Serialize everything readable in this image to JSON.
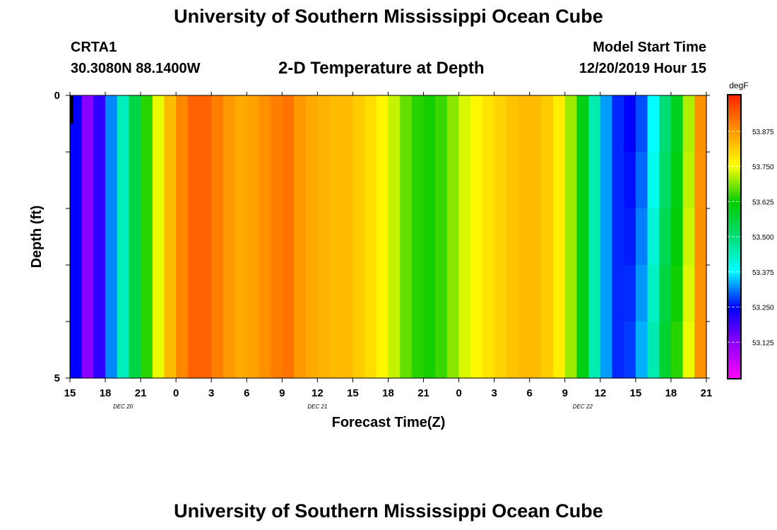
{
  "header": {
    "title": "University of Southern Mississippi Ocean Cube",
    "station": "CRTA1",
    "coordinates": "30.3080N 88.1400W",
    "chart_title": "2-D Temperature at Depth",
    "model_start_label": "Model Start Time",
    "model_start_value": "12/20/2019 Hour 15"
  },
  "footer": {
    "title": "University of Southern Mississippi Ocean Cube"
  },
  "chart_data": {
    "type": "heatmap",
    "title": "2-D Temperature at Depth",
    "xlabel": "Forecast Time(Z)",
    "ylabel": "Depth (ft)",
    "colorbar_label": "degF",
    "x_tick_labels": [
      "15",
      "18",
      "21",
      "0",
      "3",
      "6",
      "9",
      "12",
      "15",
      "18",
      "21",
      "0",
      "3",
      "6",
      "9",
      "12",
      "15",
      "18",
      "21"
    ],
    "y_tick_labels": [
      "0",
      "5"
    ],
    "y_range": [
      0,
      5
    ],
    "date_labels": [
      {
        "text": "DEC  20",
        "tick_index": 1.5
      },
      {
        "text": "DEC  21",
        "tick_index": 7
      },
      {
        "text": "DEC  22",
        "tick_index": 14.5
      }
    ],
    "colorbar_ticks": [
      "53.875",
      "53.750",
      "53.625",
      "53.500",
      "53.375",
      "53.250",
      "53.125"
    ],
    "colorbar_range": [
      53.0,
      54.0
    ],
    "hours": 54,
    "depth_levels": 5,
    "temperature_profile_degF": [
      53.25,
      53.13,
      53.21,
      53.32,
      53.44,
      53.55,
      53.64,
      53.74,
      53.83,
      53.89,
      53.93,
      53.93,
      53.9,
      53.87,
      53.85,
      53.86,
      53.88,
      53.9,
      53.91,
      53.87,
      53.85,
      53.84,
      53.83,
      53.83,
      53.81,
      53.79,
      53.76,
      53.72,
      53.67,
      53.64,
      53.63,
      53.65,
      53.69,
      53.73,
      53.76,
      53.78,
      53.8,
      53.82,
      53.83,
      53.83,
      53.81,
      53.77,
      53.7,
      53.6,
      53.45,
      53.33,
      53.27,
      53.25,
      53.29,
      53.38,
      53.5,
      53.59,
      53.71,
      53.88
    ]
  }
}
